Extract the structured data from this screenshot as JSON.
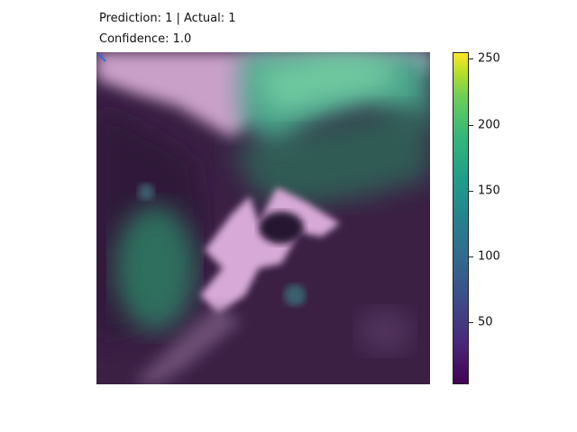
{
  "figure": {
    "title_line1": "Prediction: 1 | Actual: 1",
    "title_line2": "Confidence: 1.0"
  },
  "colorbar": {
    "colormap": "viridis",
    "ticks": [
      {
        "label": "250",
        "value": 250
      },
      {
        "label": "200",
        "value": 200
      },
      {
        "label": "150",
        "value": 150
      },
      {
        "label": "100",
        "value": 100
      },
      {
        "label": "50",
        "value": 50
      }
    ]
  }
}
